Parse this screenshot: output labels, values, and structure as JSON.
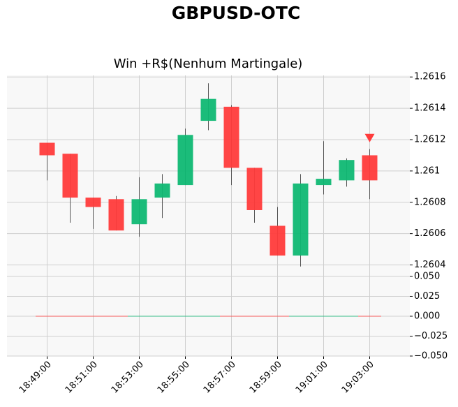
{
  "chart_data": {
    "type": "candlestick",
    "title": "GBPUSD-OTC",
    "subtitle": "Win +R$(Nenhum Martingale)",
    "categories": [
      "18:49:00",
      null,
      "18:51:00",
      null,
      "18:53:00",
      null,
      "18:55:00",
      null,
      "18:57:00",
      null,
      "18:59:00",
      null,
      "19:01:00",
      null,
      "19:03:00"
    ],
    "open": [
      1.26118,
      1.26111,
      1.26083,
      1.26082,
      1.26066,
      1.26083,
      1.26091,
      1.26132,
      1.26141,
      1.26102,
      1.26065,
      1.26046,
      1.26091,
      1.26094,
      1.2611
    ],
    "high": [
      1.26118,
      1.26111,
      1.26083,
      1.26084,
      1.26096,
      1.26098,
      1.26127,
      1.26156,
      1.26142,
      1.26102,
      1.26077,
      1.26098,
      1.26119,
      1.26108,
      1.26114
    ],
    "low": [
      1.26094,
      1.26067,
      1.26063,
      1.26062,
      1.26058,
      1.2607,
      1.26091,
      1.26126,
      1.26091,
      1.26067,
      1.26046,
      1.26039,
      1.26085,
      1.2609,
      1.26082
    ],
    "close": [
      1.2611,
      1.26083,
      1.26077,
      1.26062,
      1.26082,
      1.26092,
      1.26123,
      1.26146,
      1.26102,
      1.26075,
      1.26046,
      1.26092,
      1.26095,
      1.26107,
      1.26094
    ],
    "volume": [
      0,
      0,
      0,
      0,
      0,
      0,
      0,
      0,
      0,
      0,
      0,
      0,
      0,
      0,
      0
    ],
    "up_color": "#0fb873",
    "down_color": "#ff3b3b",
    "ylim": [
      1.26034,
      1.26161
    ],
    "yticks": [
      1.2604,
      1.2606,
      1.2608,
      1.261,
      1.2612,
      1.2614,
      1.2616
    ],
    "volume_ylim": [
      -0.05,
      0.0526
    ],
    "volume_yticks": [
      {
        "value": -0.05,
        "label": "−0.050"
      },
      {
        "value": -0.025,
        "label": "−0.025"
      },
      {
        "value": 0,
        "label": "0.000"
      },
      {
        "value": 0.025,
        "label": "0.025"
      },
      {
        "value": 0.05,
        "label": "0.050"
      }
    ],
    "marker": {
      "x": "19:03:00",
      "y": 1.26121,
      "color": "#ff3b3b"
    },
    "grid": true
  }
}
